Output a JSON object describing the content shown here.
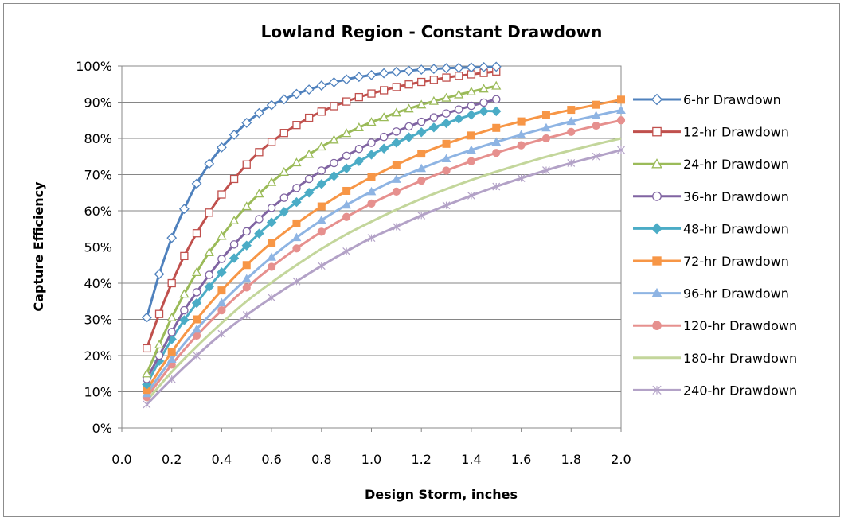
{
  "chart_data": {
    "type": "line",
    "title": "Lowland Region - Constant Drawdown",
    "xlabel": "Design Storm, inches",
    "ylabel": "Capture Efficiency",
    "xlim": [
      0.0,
      2.0
    ],
    "ylim": [
      0,
      100
    ],
    "x_ticks": [
      "0.0",
      "0.2",
      "0.4",
      "0.6",
      "0.8",
      "1.0",
      "1.2",
      "1.4",
      "1.6",
      "1.8",
      "2.0"
    ],
    "y_ticks": [
      "0%",
      "10%",
      "20%",
      "30%",
      "40%",
      "50%",
      "60%",
      "70%",
      "80%",
      "90%",
      "100%"
    ],
    "grid": "horizontal",
    "legend_position": "right",
    "series": [
      {
        "name": "6-hr Drawdown",
        "color": "#4F81BD",
        "marker": "diamond-open",
        "x": [
          0.1,
          0.15,
          0.2,
          0.25,
          0.3,
          0.35,
          0.4,
          0.45,
          0.5,
          0.55,
          0.6,
          0.65,
          0.7,
          0.75,
          0.8,
          0.85,
          0.9,
          0.95,
          1.0,
          1.05,
          1.1,
          1.15,
          1.2,
          1.25,
          1.3,
          1.35,
          1.4,
          1.45,
          1.5
        ],
        "y": [
          30.5,
          42.5,
          52.5,
          60.5,
          67.5,
          73.0,
          77.5,
          81.0,
          84.3,
          87.0,
          89.2,
          90.8,
          92.3,
          93.5,
          94.6,
          95.5,
          96.3,
          97.0,
          97.5,
          98.0,
          98.4,
          98.7,
          99.0,
          99.2,
          99.4,
          99.5,
          99.6,
          99.7,
          99.8
        ]
      },
      {
        "name": "12-hr Drawdown",
        "color": "#C0504D",
        "marker": "square-open",
        "x": [
          0.1,
          0.15,
          0.2,
          0.25,
          0.3,
          0.35,
          0.4,
          0.45,
          0.5,
          0.55,
          0.6,
          0.65,
          0.7,
          0.75,
          0.8,
          0.85,
          0.9,
          0.95,
          1.0,
          1.05,
          1.1,
          1.15,
          1.2,
          1.25,
          1.3,
          1.35,
          1.4,
          1.45,
          1.5
        ],
        "y": [
          22.0,
          31.5,
          40.0,
          47.5,
          53.8,
          59.5,
          64.5,
          68.8,
          72.8,
          76.2,
          79.0,
          81.5,
          83.7,
          85.7,
          87.4,
          88.9,
          90.2,
          91.4,
          92.4,
          93.3,
          94.2,
          94.9,
          95.6,
          96.2,
          96.8,
          97.3,
          97.7,
          98.1,
          98.5
        ]
      },
      {
        "name": "24-hr Drawdown",
        "color": "#9BBB59",
        "marker": "triangle-open",
        "x": [
          0.1,
          0.15,
          0.2,
          0.25,
          0.3,
          0.35,
          0.4,
          0.45,
          0.5,
          0.55,
          0.6,
          0.65,
          0.7,
          0.75,
          0.8,
          0.85,
          0.9,
          0.95,
          1.0,
          1.05,
          1.1,
          1.15,
          1.2,
          1.25,
          1.3,
          1.35,
          1.4,
          1.45,
          1.5
        ],
        "y": [
          15.0,
          23.0,
          30.5,
          37.0,
          43.0,
          48.5,
          53.0,
          57.3,
          61.2,
          64.7,
          67.9,
          70.7,
          73.3,
          75.6,
          77.7,
          79.6,
          81.4,
          83.0,
          84.5,
          85.8,
          87.1,
          88.2,
          89.3,
          90.3,
          91.2,
          92.1,
          92.9,
          93.7,
          94.5
        ]
      },
      {
        "name": "36-hr Drawdown",
        "color": "#8064A2",
        "marker": "circle-open",
        "x": [
          0.1,
          0.15,
          0.2,
          0.25,
          0.3,
          0.35,
          0.4,
          0.45,
          0.5,
          0.55,
          0.6,
          0.65,
          0.7,
          0.75,
          0.8,
          0.85,
          0.9,
          0.95,
          1.0,
          1.05,
          1.1,
          1.15,
          1.2,
          1.25,
          1.3,
          1.35,
          1.4,
          1.45,
          1.5
        ],
        "y": [
          13.5,
          20.0,
          26.5,
          32.5,
          37.5,
          42.3,
          46.7,
          50.7,
          54.3,
          57.7,
          60.8,
          63.6,
          66.3,
          68.8,
          71.1,
          73.2,
          75.2,
          77.1,
          78.8,
          80.4,
          81.9,
          83.3,
          84.6,
          85.8,
          86.9,
          88.0,
          89.0,
          89.9,
          90.8
        ]
      },
      {
        "name": "48-hr Drawdown",
        "color": "#4BACC6",
        "marker": "diamond-filled",
        "x": [
          0.1,
          0.15,
          0.2,
          0.25,
          0.3,
          0.35,
          0.4,
          0.45,
          0.5,
          0.55,
          0.6,
          0.65,
          0.7,
          0.75,
          0.8,
          0.85,
          0.9,
          0.95,
          1.0,
          1.05,
          1.1,
          1.15,
          1.2,
          1.25,
          1.3,
          1.35,
          1.4,
          1.45,
          1.5
        ],
        "y": [
          12.0,
          18.5,
          24.5,
          29.8,
          34.5,
          39.0,
          43.0,
          46.9,
          50.4,
          53.7,
          56.8,
          59.7,
          62.4,
          65.0,
          67.4,
          69.6,
          71.7,
          73.7,
          75.5,
          77.2,
          78.8,
          80.3,
          81.7,
          83.0,
          84.2,
          85.4,
          86.5,
          87.5,
          87.5
        ]
      },
      {
        "name": "72-hr Drawdown",
        "color": "#F79646",
        "marker": "square-filled",
        "x": [
          0.1,
          0.2,
          0.3,
          0.4,
          0.5,
          0.6,
          0.7,
          0.8,
          0.9,
          1.0,
          1.1,
          1.2,
          1.3,
          1.4,
          1.5,
          1.6,
          1.7,
          1.8,
          1.9,
          2.0
        ],
        "y": [
          10.5,
          21.0,
          30.0,
          38.0,
          45.0,
          51.2,
          56.5,
          61.2,
          65.5,
          69.3,
          72.7,
          75.8,
          78.5,
          80.8,
          82.9,
          84.7,
          86.4,
          87.9,
          89.3,
          90.7
        ]
      },
      {
        "name": "96-hr Drawdown",
        "color": "#8EB4E3",
        "marker": "triangle-filled",
        "x": [
          0.1,
          0.2,
          0.3,
          0.4,
          0.5,
          0.6,
          0.7,
          0.8,
          0.9,
          1.0,
          1.1,
          1.2,
          1.3,
          1.4,
          1.5,
          1.6,
          1.7,
          1.8,
          1.9,
          2.0
        ],
        "y": [
          9.5,
          19.0,
          27.3,
          34.6,
          41.2,
          47.2,
          52.6,
          57.4,
          61.6,
          65.3,
          68.7,
          71.7,
          74.4,
          76.8,
          79.0,
          81.0,
          82.9,
          84.7,
          86.3,
          87.8
        ]
      },
      {
        "name": "120-hr Drawdown",
        "color": "#E6908E",
        "marker": "circle-filled",
        "x": [
          0.1,
          0.2,
          0.3,
          0.4,
          0.5,
          0.6,
          0.7,
          0.8,
          0.9,
          1.0,
          1.1,
          1.2,
          1.3,
          1.4,
          1.5,
          1.6,
          1.7,
          1.8,
          1.9,
          2.0
        ],
        "y": [
          8.5,
          17.5,
          25.5,
          32.5,
          38.8,
          44.5,
          49.6,
          54.2,
          58.3,
          62.0,
          65.3,
          68.3,
          71.1,
          73.7,
          76.0,
          78.1,
          80.0,
          81.8,
          83.5,
          85.0
        ]
      },
      {
        "name": "180-hr Drawdown",
        "color": "#C3D69B",
        "marker": "none",
        "x": [
          0.1,
          0.2,
          0.3,
          0.4,
          0.5,
          0.6,
          0.7,
          0.8,
          0.9,
          1.0,
          1.1,
          1.2,
          1.3,
          1.4,
          1.5,
          1.6,
          1.7,
          1.8,
          1.9,
          2.0
        ],
        "y": [
          7.5,
          15.5,
          22.5,
          29.0,
          35.0,
          40.2,
          45.0,
          49.5,
          53.5,
          57.0,
          60.3,
          63.3,
          66.0,
          68.5,
          70.8,
          72.9,
          74.9,
          76.7,
          78.4,
          80.0
        ]
      },
      {
        "name": "240-hr Drawdown",
        "color": "#B3A2C7",
        "marker": "star",
        "x": [
          0.1,
          0.2,
          0.3,
          0.4,
          0.5,
          0.6,
          0.7,
          0.8,
          0.9,
          1.0,
          1.1,
          1.2,
          1.3,
          1.4,
          1.5,
          1.6,
          1.7,
          1.8,
          1.9,
          2.0
        ],
        "y": [
          6.5,
          13.5,
          20.0,
          26.0,
          31.2,
          36.0,
          40.5,
          44.8,
          48.8,
          52.5,
          55.6,
          58.7,
          61.5,
          64.2,
          66.7,
          69.0,
          71.2,
          73.2,
          75.0,
          76.8
        ]
      }
    ]
  }
}
